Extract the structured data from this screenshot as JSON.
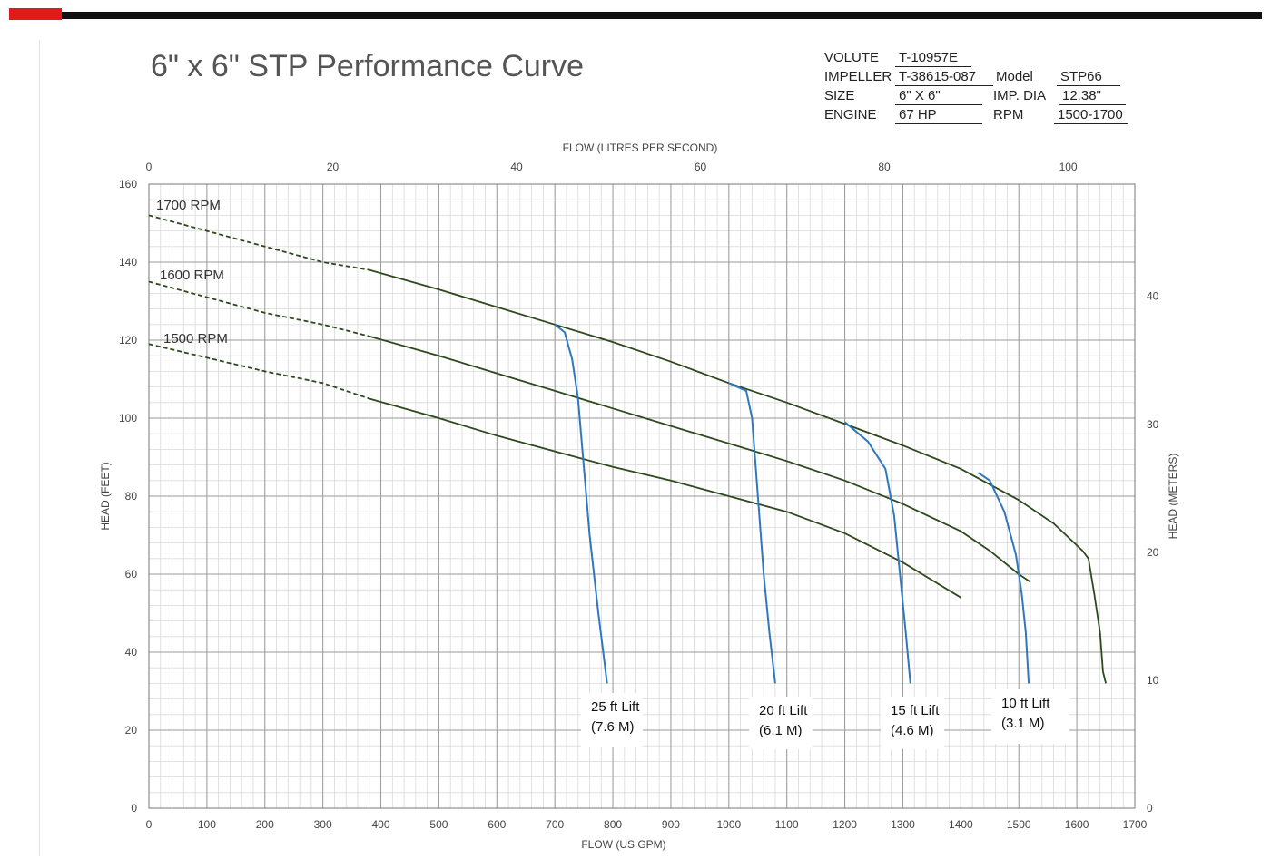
{
  "page_title": "6\" x 6\" STP Performance Curve",
  "specs": {
    "volute_label": "VOLUTE",
    "volute_value": "T-10957E",
    "impeller_label": "IMPELLER",
    "impeller_value": "T-38615-087",
    "model_label": "Model",
    "model_value": "STP66",
    "size_label": "SIZE",
    "size_value": "6\" X 6\"",
    "impdia_label": "IMP. DIA",
    "impdia_value": "12.38\"",
    "engine_label": "ENGINE",
    "engine_value": "67 HP",
    "rpm_label": "RPM",
    "rpm_value": "1500-1700"
  },
  "colors": {
    "rpm_curve": "#2d4a1e",
    "lift_curve": "#2e78c0",
    "grid_minor": "#d9d9d9",
    "grid_major": "#9a9a9a",
    "brand_red": "#e01b1b"
  },
  "chart_data": {
    "type": "line",
    "xlabel": "FLOW (US GPM)",
    "x2label": "FLOW (LITRES PER SECOND)",
    "ylabel": "HEAD (FEET)",
    "y2label": "HEAD (METERS)",
    "xlim": [
      0,
      1700
    ],
    "ylim": [
      0,
      160
    ],
    "x2lim": [
      0,
      107.25
    ],
    "y2lim": [
      0,
      48.77
    ],
    "x_ticks": [
      0,
      100,
      200,
      300,
      400,
      500,
      600,
      700,
      800,
      900,
      1000,
      1100,
      1200,
      1300,
      1400,
      1500,
      1600,
      1700
    ],
    "y_ticks": [
      0,
      20,
      40,
      60,
      80,
      100,
      120,
      140,
      160
    ],
    "x2_ticks": [
      0,
      20,
      40,
      60,
      80,
      100
    ],
    "y2_ticks": [
      0,
      10,
      20,
      30,
      40
    ],
    "grid": true,
    "rpm_series": [
      {
        "name": "1700 RPM",
        "dashed": [
          [
            0,
            152
          ],
          [
            100,
            148
          ],
          [
            200,
            144
          ],
          [
            300,
            140
          ],
          [
            380,
            138
          ]
        ],
        "solid": [
          [
            380,
            138
          ],
          [
            500,
            133
          ],
          [
            600,
            128.5
          ],
          [
            700,
            124
          ],
          [
            800,
            119.5
          ],
          [
            900,
            114.5
          ],
          [
            1000,
            109
          ],
          [
            1100,
            104
          ],
          [
            1200,
            98.5
          ],
          [
            1300,
            93
          ],
          [
            1400,
            87
          ],
          [
            1500,
            79
          ],
          [
            1560,
            73
          ],
          [
            1610,
            66
          ],
          [
            1620,
            64
          ],
          [
            1630,
            55
          ],
          [
            1640,
            45
          ],
          [
            1645,
            35
          ],
          [
            1650,
            32
          ]
        ]
      },
      {
        "name": "1600 RPM",
        "dashed": [
          [
            0,
            135
          ],
          [
            100,
            131
          ],
          [
            200,
            127
          ],
          [
            300,
            124
          ],
          [
            380,
            121
          ]
        ],
        "solid": [
          [
            380,
            121
          ],
          [
            500,
            116
          ],
          [
            600,
            111.5
          ],
          [
            700,
            107
          ],
          [
            800,
            102.5
          ],
          [
            900,
            98
          ],
          [
            1000,
            93.5
          ],
          [
            1100,
            89
          ],
          [
            1200,
            84
          ],
          [
            1300,
            78
          ],
          [
            1400,
            71
          ],
          [
            1450,
            66
          ],
          [
            1500,
            60
          ],
          [
            1520,
            58
          ]
        ]
      },
      {
        "name": "1500 RPM",
        "dashed": [
          [
            0,
            119
          ],
          [
            100,
            115.5
          ],
          [
            200,
            112
          ],
          [
            300,
            109
          ],
          [
            380,
            105
          ]
        ],
        "solid": [
          [
            380,
            105
          ],
          [
            500,
            100
          ],
          [
            600,
            95.5
          ],
          [
            700,
            91.5
          ],
          [
            800,
            87.5
          ],
          [
            900,
            84
          ],
          [
            1000,
            80
          ],
          [
            1100,
            76
          ],
          [
            1200,
            70.5
          ],
          [
            1300,
            63
          ],
          [
            1400,
            54
          ]
        ]
      }
    ],
    "lift_series": [
      {
        "name": "25 ft Lift",
        "sub": "(7.6 M)",
        "points": [
          [
            700,
            124
          ],
          [
            717,
            122
          ],
          [
            730,
            115
          ],
          [
            740,
            105
          ],
          [
            760,
            70
          ],
          [
            775,
            50
          ],
          [
            790,
            32
          ]
        ]
      },
      {
        "name": "20 ft Lift",
        "sub": "(6.1 M)",
        "points": [
          [
            1000,
            109
          ],
          [
            1030,
            107
          ],
          [
            1040,
            100
          ],
          [
            1050,
            80
          ],
          [
            1060,
            60
          ],
          [
            1070,
            45
          ],
          [
            1080,
            32
          ]
        ]
      },
      {
        "name": "15 ft Lift",
        "sub": "(4.6 M)",
        "points": [
          [
            1200,
            99
          ],
          [
            1240,
            94
          ],
          [
            1270,
            87
          ],
          [
            1285,
            75
          ],
          [
            1295,
            60
          ],
          [
            1305,
            45
          ],
          [
            1313,
            32
          ]
        ]
      },
      {
        "name": "10 ft Lift",
        "sub": "(3.1 M)",
        "points": [
          [
            1430,
            86
          ],
          [
            1450,
            84
          ],
          [
            1475,
            76
          ],
          [
            1495,
            65
          ],
          [
            1505,
            55
          ],
          [
            1512,
            45
          ],
          [
            1517,
            32
          ]
        ]
      }
    ],
    "y_tick_labels": [
      "0",
      "20",
      "40",
      "60",
      "80",
      "100",
      "120",
      "140",
      "160"
    ]
  }
}
